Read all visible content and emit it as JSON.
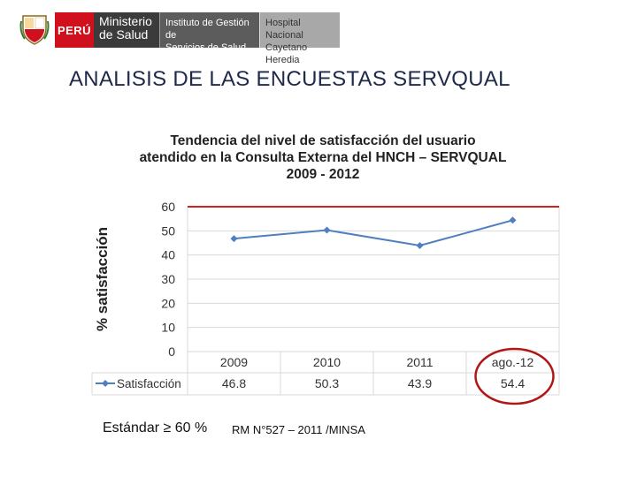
{
  "header": {
    "country": "PERÚ",
    "ministry": [
      "Ministerio",
      "de Salud"
    ],
    "institute": [
      "Instituto de Gestión de",
      "Servicios de Salud"
    ],
    "hospital": [
      "Hospital Nacional",
      "Cayetano Heredia"
    ]
  },
  "page": {
    "title": "ANALISIS DE LAS ENCUESTAS SERVQUAL",
    "standard": "Estándar ≥ 60 %",
    "reference": "RM N°527 – 2011 /MINSA"
  },
  "colors": {
    "series": "#4f7fbf",
    "standard_line": "#d42020",
    "highlight_circle": "#b01818",
    "grid": "#d9d9d9"
  },
  "chart_data": {
    "type": "line",
    "title": [
      "Tendencia del nivel de satisfacción del usuario",
      "atendido en la Consulta Externa del HNCH – SERVQUAL",
      "2009 - 2012"
    ],
    "ylabel": "% satisfacción",
    "xlabel": "",
    "ylim": [
      0,
      60
    ],
    "yticks": [
      0,
      10,
      20,
      30,
      40,
      50,
      60
    ],
    "categories": [
      "2009",
      "2010",
      "2011",
      "ago.-12"
    ],
    "series": [
      {
        "name": "Satisfacción",
        "values": [
          46.8,
          50.3,
          43.9,
          54.4
        ],
        "labels": [
          "46.8",
          "50.3",
          "43.9",
          "54.4"
        ]
      }
    ],
    "reference_line": 60,
    "highlighted_category": "ago.-12",
    "data_table": true,
    "grid": true
  }
}
